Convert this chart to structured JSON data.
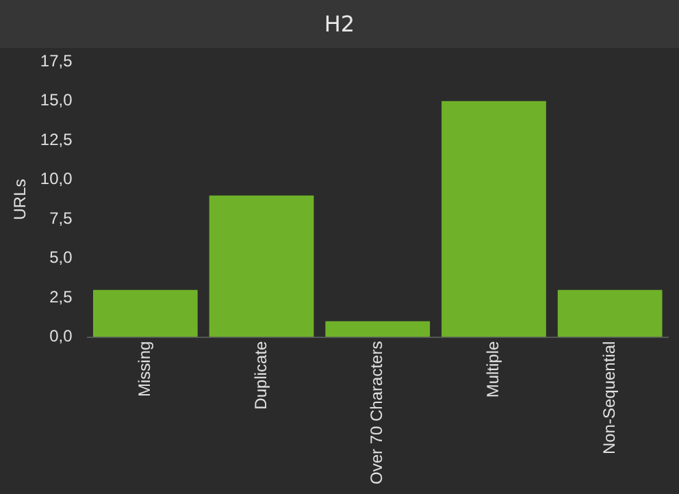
{
  "chart_data": {
    "type": "bar",
    "title": "H2",
    "ylabel": "URLs",
    "categories": [
      "Missing",
      "Duplicate",
      "Over 70 Characters",
      "Multiple",
      "Non-Sequential"
    ],
    "values": [
      3,
      9,
      1,
      15,
      3
    ],
    "color": "#6fb22a",
    "ylim": [
      0,
      17.5
    ],
    "yticks": [
      {
        "value": 0,
        "label": "0,0"
      },
      {
        "value": 2.5,
        "label": "2,5"
      },
      {
        "value": 5,
        "label": "5,0"
      },
      {
        "value": 7.5,
        "label": "7,5"
      },
      {
        "value": 10,
        "label": "10,0"
      },
      {
        "value": 12.5,
        "label": "12,5"
      },
      {
        "value": 15,
        "label": "15,0"
      },
      {
        "value": 17.5,
        "label": "17,5"
      }
    ],
    "grid": false,
    "legend": false
  }
}
